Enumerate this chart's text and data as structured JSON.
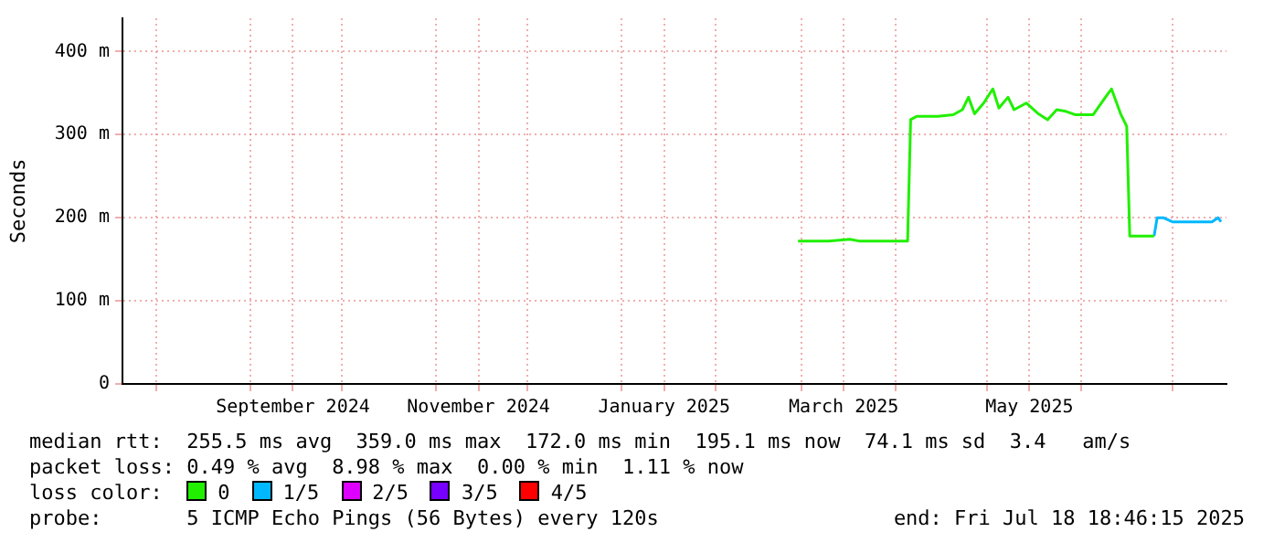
{
  "chart_data": {
    "type": "line",
    "ylabel": "Seconds",
    "legend_title": "loss color:",
    "legend": "bottom",
    "grid": true,
    "marker": "none",
    "line_style": "solid",
    "x": [
      "2025-02-28",
      "2025-03-10",
      "2025-03-17",
      "2025-03-20",
      "2025-04-05",
      "2025-04-06",
      "2025-04-08",
      "2025-04-15",
      "2025-04-20",
      "2025-04-23",
      "2025-04-25",
      "2025-04-27",
      "2025-04-30",
      "2025-05-03",
      "2025-05-05",
      "2025-05-08",
      "2025-05-10",
      "2025-05-14",
      "2025-05-18",
      "2025-05-21",
      "2025-05-24",
      "2025-05-27",
      "2025-05-30",
      "2025-06-05",
      "2025-06-09",
      "2025-06-11",
      "2025-06-14",
      "2025-06-16",
      "2025-06-17",
      "2025-06-25",
      "2025-06-26",
      "2025-06-28",
      "2025-07-01",
      "2025-07-14",
      "2025-07-16",
      "2025-07-17"
    ],
    "series": [
      {
        "name": "0",
        "color": "#20f000",
        "values": [
          172,
          172,
          174,
          172,
          172,
          318,
          322,
          322,
          324,
          330,
          345,
          325,
          338,
          355,
          332,
          345,
          330,
          338,
          325,
          318,
          330,
          328,
          324,
          324,
          345,
          355,
          325,
          310,
          178,
          178,
          null,
          null,
          null,
          null,
          null,
          null
        ]
      },
      {
        "name": "1/5",
        "color": "#00b8ff",
        "values": [
          null,
          null,
          null,
          null,
          null,
          null,
          null,
          null,
          null,
          null,
          null,
          null,
          null,
          null,
          null,
          null,
          null,
          null,
          null,
          null,
          null,
          null,
          null,
          null,
          null,
          null,
          null,
          null,
          null,
          178,
          200,
          200,
          195,
          195,
          200,
          195
        ]
      },
      {
        "name": "2/5",
        "color": "#dd00ff",
        "values": [
          null,
          null,
          null,
          null,
          null,
          null,
          null,
          null,
          null,
          null,
          null,
          null,
          null,
          null,
          null,
          null,
          null,
          null,
          null,
          null,
          null,
          null,
          null,
          null,
          null,
          null,
          null,
          null,
          null,
          null,
          null,
          null,
          null,
          null,
          null,
          null
        ]
      },
      {
        "name": "3/5",
        "color": "#7700ff",
        "values": [
          null,
          null,
          null,
          null,
          null,
          null,
          null,
          null,
          null,
          null,
          null,
          null,
          null,
          null,
          null,
          null,
          null,
          null,
          null,
          null,
          null,
          null,
          null,
          null,
          null,
          null,
          null,
          null,
          null,
          null,
          null,
          null,
          null,
          null,
          null,
          null
        ]
      },
      {
        "name": "4/5",
        "color": "#ff0000",
        "values": [
          null,
          null,
          null,
          null,
          null,
          null,
          null,
          null,
          null,
          null,
          null,
          null,
          null,
          null,
          null,
          null,
          null,
          null,
          null,
          null,
          null,
          null,
          null,
          null,
          null,
          null,
          null,
          null,
          null,
          null,
          null,
          null,
          null,
          null,
          null,
          null
        ]
      }
    ],
    "xlim": [
      "2024-07-21",
      "2025-07-18T18:46"
    ],
    "xticks": [
      {
        "value": "2024-08-01",
        "label": null
      },
      {
        "value": "2024-09-01",
        "label": null
      },
      {
        "value": "2024-09-15",
        "label": "September 2024"
      },
      {
        "value": "2024-10-01",
        "label": null
      },
      {
        "value": "2024-11-01",
        "label": null
      },
      {
        "value": "2024-11-15",
        "label": "November 2024"
      },
      {
        "value": "2024-12-01",
        "label": null
      },
      {
        "value": "2025-01-01",
        "label": null
      },
      {
        "value": "2025-01-15",
        "label": "January 2025"
      },
      {
        "value": "2025-02-01",
        "label": null
      },
      {
        "value": "2025-03-01",
        "label": null
      },
      {
        "value": "2025-03-15",
        "label": "March 2025"
      },
      {
        "value": "2025-04-01",
        "label": null
      },
      {
        "value": "2025-05-01",
        "label": null
      },
      {
        "value": "2025-05-15",
        "label": "May 2025"
      },
      {
        "value": "2025-06-01",
        "label": null
      },
      {
        "value": "2025-07-01",
        "label": null
      }
    ],
    "ylim": [
      0,
      440
    ],
    "yticks": [
      {
        "value": 0,
        "label": "0"
      },
      {
        "value": 100,
        "label": "100 m"
      },
      {
        "value": 200,
        "label": "200 m"
      },
      {
        "value": 300,
        "label": "300 m"
      },
      {
        "value": 400,
        "label": "400 m"
      }
    ],
    "annotations": [
      "median rtt:  255.5 ms avg  359.0 ms max  172.0 ms min  195.1 ms now  74.1 ms sd  3.4   am/s",
      "packet loss: 0.49 % avg  8.98 % max  0.00 % min  1.11 % now",
      "probe:       5 ICMP Echo Pings (56 Bytes) every 120s",
      "end: Fri Jul 18 18:46:15 2025"
    ]
  }
}
